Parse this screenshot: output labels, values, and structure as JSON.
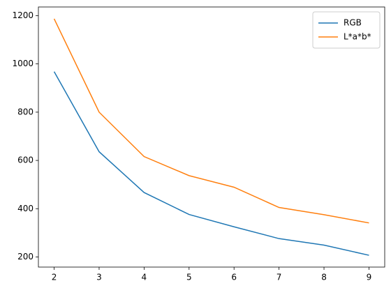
{
  "chart_data": {
    "type": "line",
    "x": [
      2,
      3,
      4,
      5,
      6,
      7,
      8,
      9
    ],
    "series": [
      {
        "name": "RGB",
        "color": "#1f77b4",
        "values": [
          968,
          636,
          467,
          376,
          325,
          276,
          249,
          207
        ]
      },
      {
        "name": "L*a*b*",
        "color": "#ff7f0e",
        "values": [
          1187,
          800,
          616,
          537,
          489,
          405,
          375,
          341
        ]
      }
    ],
    "xlim": [
      1.65,
      9.35
    ],
    "xticks": [
      2,
      3,
      4,
      5,
      6,
      7,
      8,
      9
    ],
    "ylim": [
      158,
      1236
    ],
    "yticks": [
      200,
      400,
      600,
      800,
      1000,
      1200
    ],
    "legend": "upper right"
  }
}
